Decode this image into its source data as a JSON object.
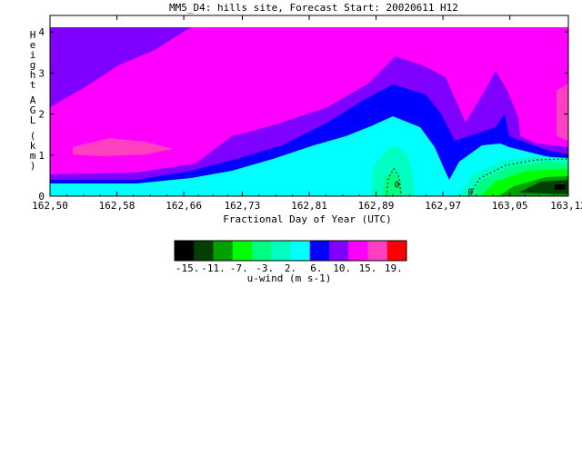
{
  "chart_data": {
    "type": "heatmap",
    "title": "MM5_D4: hills site,  Forecast Start: 20020611 H12",
    "xlabel": "Fractional Day of Year (UTC)",
    "ylabel": "Height AGL (km)",
    "xlim": [
      162.5,
      163.12
    ],
    "ylim": [
      0,
      4.4
    ],
    "x_tick_labels": [
      "162,50",
      "162,58",
      "162,66",
      "162,73",
      "162,81",
      "162,89",
      "162,97",
      "163,05",
      "163,12"
    ],
    "x_tick_values": [
      162.5,
      162.58,
      162.66,
      162.73,
      162.81,
      162.89,
      162.97,
      163.05,
      163.12
    ],
    "y_tick_labels": [
      "0",
      "1",
      "2",
      "3",
      "4"
    ],
    "y_tick_values": [
      0,
      1,
      2,
      3,
      4
    ],
    "contour_labels": [
      {
        "text": "0",
        "x": 162.915,
        "y": 0.3
      },
      {
        "text": "0",
        "x": 163.003,
        "y": 0.12
      }
    ],
    "colorbar": {
      "label": "u-wind (m s-1)",
      "tick_labels": [
        "-15.",
        "-11.",
        "-7.",
        "-3.",
        "2.",
        "6.",
        "10.",
        "15.",
        "19."
      ],
      "colors": [
        "#000000",
        "#004000",
        "#00a000",
        "#00ff00",
        "#00ff80",
        "#00ffc0",
        "#00ffff",
        "#0000ff",
        "#8000ff",
        "#ff00ff",
        "#ff40c0",
        "#ff0000"
      ]
    },
    "bands": [
      {
        "level": "2 to 6",
        "color": "#00ffff"
      },
      {
        "level": "6 to 10",
        "color": "#0000ff"
      },
      {
        "level": "10 to 15",
        "color": "#8000ff"
      },
      {
        "level": "15 to 19",
        "color": "#ff00ff"
      },
      {
        "level": ">19",
        "color": "#ff40c0"
      }
    ]
  }
}
